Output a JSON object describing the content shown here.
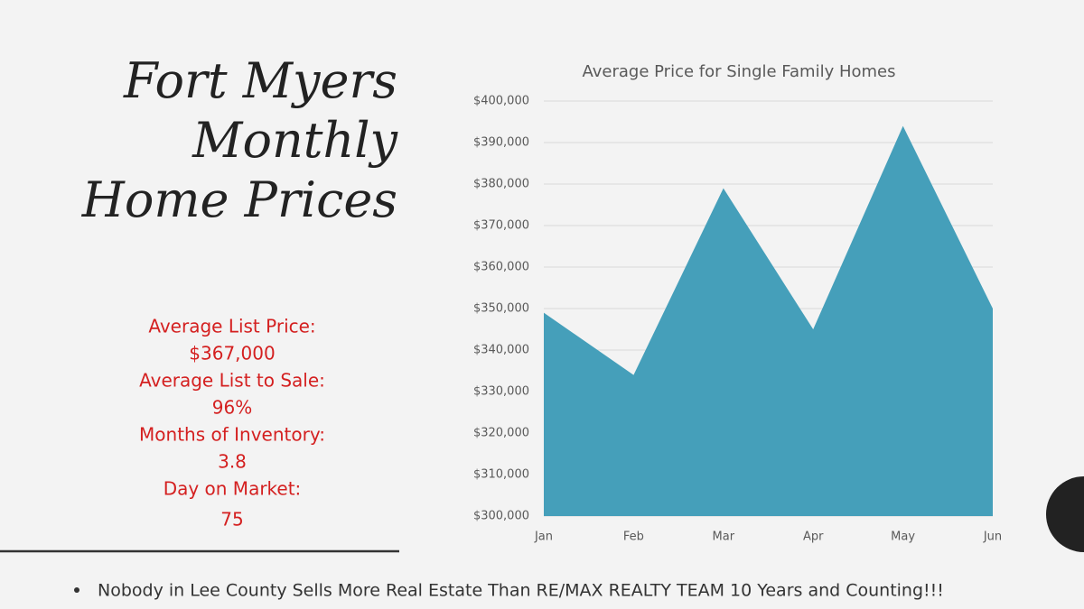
{
  "slide": {
    "title_lines": [
      "Fort Myers",
      "Monthly",
      "Home Prices"
    ],
    "stats": [
      "Average List Price:",
      "$367,000",
      "Average List to Sale:",
      "96%",
      "Months of Inventory:",
      "3.8",
      "Day on Market:",
      "75"
    ],
    "footer": "Nobody  in Lee County Sells More Real Estate Than RE/MAX REALTY  TEAM  10 Years and Counting!!!"
  },
  "chart_data": {
    "type": "area",
    "title": "Average Price for Single Family Homes",
    "categories": [
      "Jan",
      "Feb",
      "Mar",
      "Apr",
      "May",
      "Jun"
    ],
    "values": [
      349000,
      334000,
      379000,
      345000,
      394000,
      350000
    ],
    "color": "#459fba",
    "ylim": [
      300000,
      400000
    ],
    "yticks": [
      {
        "value": 300000,
        "label": "$300,000"
      },
      {
        "value": 310000,
        "label": "$310,000"
      },
      {
        "value": 320000,
        "label": "$320,000"
      },
      {
        "value": 330000,
        "label": "$330,000"
      },
      {
        "value": 340000,
        "label": "$340,000"
      },
      {
        "value": 350000,
        "label": "$350,000"
      },
      {
        "value": 360000,
        "label": "$360,000"
      },
      {
        "value": 370000,
        "label": "$370,000"
      },
      {
        "value": 380000,
        "label": "$380,000"
      },
      {
        "value": 390000,
        "label": "$390,000"
      },
      {
        "value": 400000,
        "label": "$400,000"
      }
    ],
    "grid": true
  }
}
